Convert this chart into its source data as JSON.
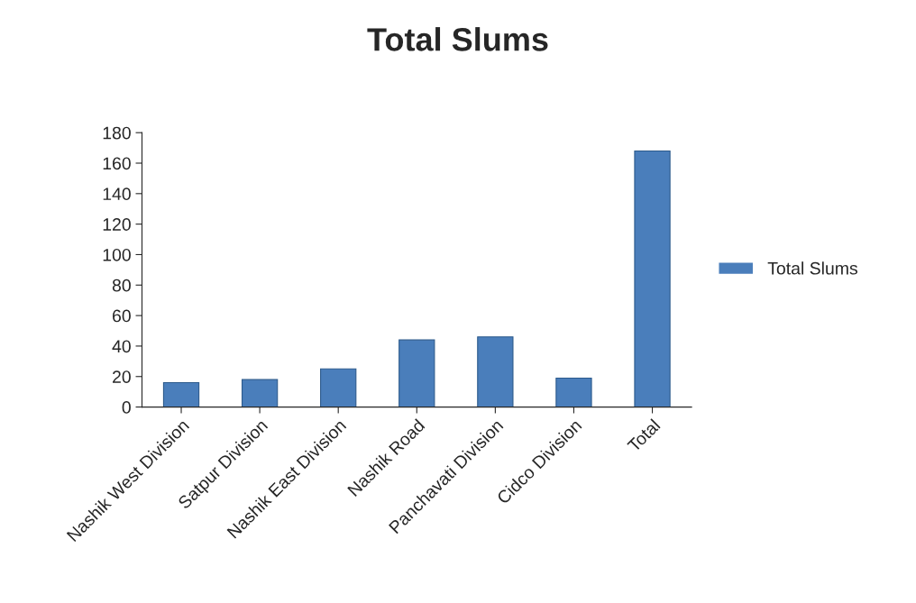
{
  "chart_data": {
    "type": "bar",
    "title": "Total Slums",
    "categories": [
      "Nashik West Division",
      "Satpur Division",
      "Nashik East Division",
      "Nashik Road",
      "Panchavati Division",
      "Cidco Division",
      "Total"
    ],
    "series": [
      {
        "name": "Total Slums",
        "color": "#4a7ebb",
        "values": [
          16,
          18,
          25,
          44,
          46,
          19,
          168
        ]
      }
    ],
    "ylim": [
      0,
      180
    ],
    "yticks": [
      0,
      20,
      40,
      60,
      80,
      100,
      120,
      140,
      160,
      180
    ],
    "grid": false,
    "legend": "right"
  }
}
